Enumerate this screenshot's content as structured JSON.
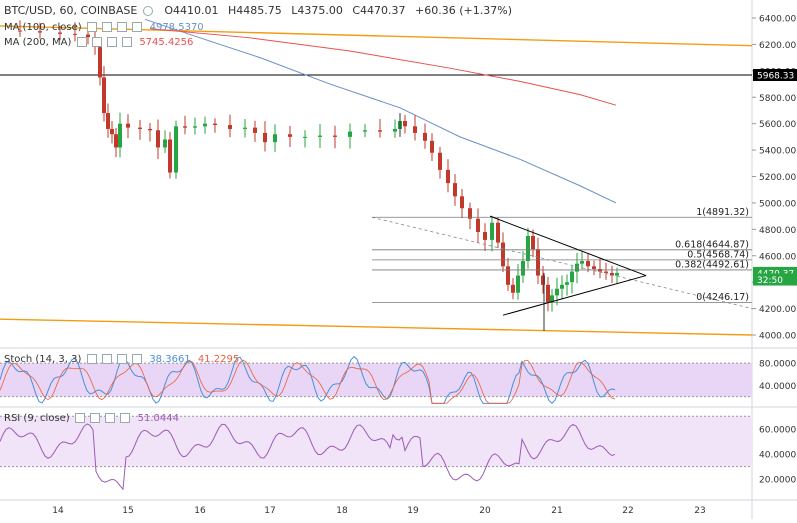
{
  "chart_data": [
    {
      "type": "candlestick",
      "header": {
        "symbol": "BTC/USD, 60, COINBASE",
        "open": "O4410.01",
        "high": "H4485.75",
        "low": "L4375.00",
        "close": "C4470.37",
        "change": "+60.36 (+1.37%)"
      },
      "ma_legends": [
        {
          "label": "MA (100, close)",
          "value": "4978.5370",
          "color": "#6a8fc5"
        },
        {
          "label": "MA (200, MA)",
          "value": "5745.4256",
          "color": "#e85050"
        }
      ],
      "y_ticks": [
        "6400.00",
        "6200.00",
        "6000.00",
        "5800.00",
        "5600.00",
        "5400.00",
        "5200.00",
        "5000.00",
        "4800.00",
        "4600.00",
        "4400.00",
        "4200.00",
        "4000.00"
      ],
      "y_range": [
        3950,
        6450
      ],
      "x_ticks": [
        "14",
        "15",
        "16",
        "17",
        "18",
        "19",
        "20",
        "21",
        "22",
        "23"
      ],
      "price_labels": [
        {
          "value": 5968.33,
          "text": "5968.33",
          "bg": "#000000",
          "fg": "#ffffff"
        },
        {
          "value": 4470.37,
          "text": "4470.37",
          "bg": "#26a642",
          "fg": "#ffffff"
        },
        {
          "value": 4420,
          "text": "32:50",
          "bg": "#26a642",
          "fg": "#ffffff"
        }
      ],
      "fib_levels": [
        {
          "value": 4891.32,
          "label": "1(4891.32)"
        },
        {
          "value": 4644.87,
          "label": "0.618(4644.87)"
        },
        {
          "value": 4568.74,
          "label": "0.5(4568.74)"
        },
        {
          "value": 4492.61,
          "label": "0.382(4492.61)"
        },
        {
          "value": 4246.17,
          "label": "0(4246.17)"
        }
      ],
      "horizontal_line": 5968.33,
      "colors": {
        "up": "#26a642",
        "down": "#c0392b",
        "ma100": "#6a8fc5",
        "ma200": "#e85050",
        "channel": "#f39c12"
      }
    },
    {
      "type": "line",
      "name": "Stoch (14, 3, 3)",
      "values_text": [
        "38.3661",
        "41.2295"
      ],
      "value_colors": [
        "#4a90d9",
        "#e8603c"
      ],
      "y_ticks": [
        "80.0000",
        "40.0000"
      ],
      "band": [
        20,
        80
      ],
      "y_range": [
        5,
        100
      ]
    },
    {
      "type": "line",
      "name": "RSI (9, close)",
      "values_text": [
        "51.0444"
      ],
      "value_colors": [
        "#9b59b6"
      ],
      "y_ticks": [
        "60.0000",
        "40.0000",
        "20.0000"
      ],
      "band": [
        30,
        70
      ],
      "y_range": [
        5,
        75
      ]
    }
  ]
}
